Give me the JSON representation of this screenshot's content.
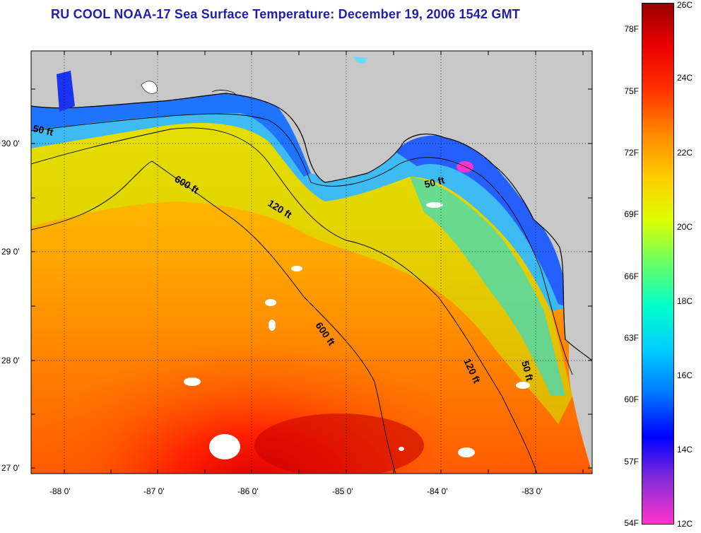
{
  "title": "RU COOL  NOAA-17  Sea Surface Temperature:  December 19, 2006 1542 GMT",
  "map": {
    "lon_ticks": [
      "-88 0'",
      "-87 0'",
      "-86 0'",
      "-85 0'",
      "-84 0'",
      "-83 0'"
    ],
    "lat_ticks": [
      "30 0'",
      "29 0'",
      "28 0'",
      "27 0'"
    ],
    "contours": [
      "50 ft",
      "600 ft",
      "120 ft",
      "50 ft",
      "600 ft",
      "120 ft",
      "50 ft"
    ],
    "land_color": "#c8c8c8",
    "grid": "dotted"
  },
  "colorbar": {
    "fahrenheit": [
      "78F",
      "75F",
      "72F",
      "69F",
      "66F",
      "63F",
      "60F",
      "57F",
      "54F"
    ],
    "celsius": [
      "26C",
      "24C",
      "22C",
      "20C",
      "18C",
      "16C",
      "14C",
      "12C"
    ],
    "colors": [
      "#ff33cc",
      "#8a2bd8",
      "#0000ff",
      "#0077ff",
      "#00ccff",
      "#00ffcc",
      "#66ff66",
      "#ddff00",
      "#ffcc00",
      "#ff8800",
      "#ff3300",
      "#ee0000",
      "#990000"
    ]
  }
}
